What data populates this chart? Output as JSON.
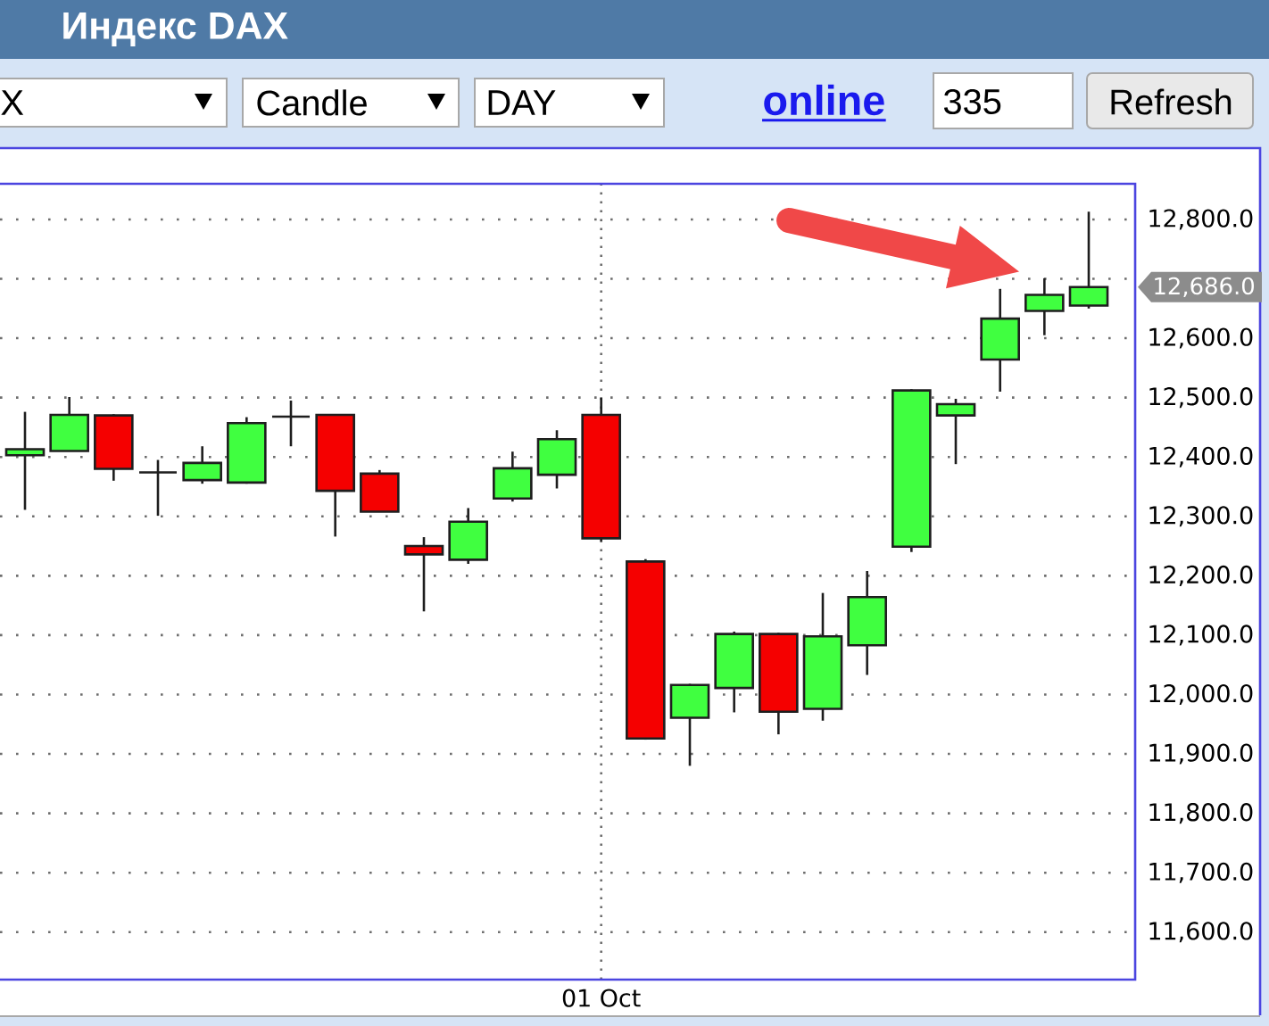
{
  "chart_data": {
    "type": "candlestick",
    "title": "Индекс DAX",
    "categories": [
      null,
      null,
      null,
      null,
      null,
      null,
      null,
      null,
      null,
      null,
      null,
      null,
      null,
      "01 Oct",
      null,
      null,
      null,
      null,
      null,
      null,
      null,
      null,
      null,
      null,
      null
    ],
    "ohlc": [
      [
        12403,
        12476,
        12311,
        12413
      ],
      [
        12410,
        12501,
        12410,
        12471
      ],
      [
        12470,
        12472,
        12360,
        12380
      ],
      [
        12374,
        12395,
        12301,
        12374
      ],
      [
        12361,
        12418,
        12355,
        12390
      ],
      [
        12357,
        12467,
        12355,
        12457
      ],
      [
        12468,
        12495,
        12418,
        12468
      ],
      [
        12471,
        12472,
        12266,
        12343
      ],
      [
        12372,
        12378,
        12308,
        12308
      ],
      [
        12250,
        12265,
        12140,
        12236
      ],
      [
        12227,
        12314,
        12220,
        12291
      ],
      [
        12330,
        12409,
        12325,
        12381
      ],
      [
        12370,
        12445,
        12347,
        12430
      ],
      [
        12471,
        12500,
        12258,
        12263
      ],
      [
        12224,
        12228,
        11924,
        11926
      ],
      [
        11961,
        12018,
        11880,
        12016
      ],
      [
        12011,
        12106,
        11970,
        12102
      ],
      [
        12102,
        12104,
        11933,
        11971
      ],
      [
        11976,
        12171,
        11956,
        12098
      ],
      [
        12083,
        12208,
        12033,
        12164
      ],
      [
        12249,
        12514,
        12240,
        12512
      ],
      [
        12470,
        12498,
        12388,
        12489
      ],
      [
        12564,
        12683,
        12510,
        12633
      ],
      [
        12646,
        12701,
        12605,
        12673
      ],
      [
        12655,
        12813,
        12650,
        12686
      ]
    ],
    "colors": [
      "#40ff40",
      "#40ff40",
      "#f50000",
      "#1a1a1a",
      "#40ff40",
      "#40ff40",
      "#1a1a1a",
      "#f50000",
      "#f50000",
      "#f50000",
      "#40ff40",
      "#40ff40",
      "#40ff40",
      "#f50000",
      "#f50000",
      "#40ff40",
      "#40ff40",
      "#f50000",
      "#40ff40",
      "#40ff40",
      "#40ff40",
      "#40ff40",
      "#40ff40",
      "#40ff40",
      "#40ff40"
    ],
    "ylim": [
      11520,
      12860
    ],
    "yticks": [
      {
        "value": 11600,
        "label": "11,600.0"
      },
      {
        "value": 11700,
        "label": "11,700.0"
      },
      {
        "value": 11800,
        "label": "11,800.0"
      },
      {
        "value": 11900,
        "label": "11,900.0"
      },
      {
        "value": 12000,
        "label": "12,000.0"
      },
      {
        "value": 12100,
        "label": "12,100.0"
      },
      {
        "value": 12200,
        "label": "12,200.0"
      },
      {
        "value": 12300,
        "label": "12,300.0"
      },
      {
        "value": 12400,
        "label": "12,400.0"
      },
      {
        "value": 12500,
        "label": "12,500.0"
      },
      {
        "value": 12600,
        "label": "12,600.0"
      },
      {
        "value": 12700,
        "label": null
      },
      {
        "value": 12800,
        "label": "12,800.0"
      }
    ],
    "grid": true,
    "annotations": [
      "X",
      "Candle",
      "DAY",
      "online",
      "335",
      "Refresh",
      "12,686.0"
    ]
  }
}
